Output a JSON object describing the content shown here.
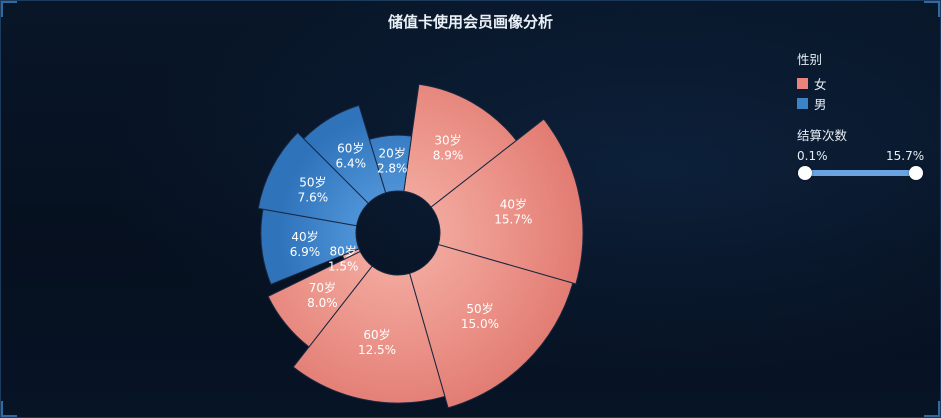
{
  "title": "储值卡使用会员画像分析",
  "legend": {
    "title": "性别",
    "items": [
      {
        "label": "女",
        "color": "#e8847b"
      },
      {
        "label": "男",
        "color": "#3b82c7"
      }
    ]
  },
  "range": {
    "title": "结算次数",
    "min_label": "0.1%",
    "max_label": "15.7%",
    "min": 0.1,
    "max": 15.7
  },
  "chart_data": {
    "type": "pie",
    "variant": "rose",
    "title": "储值卡使用会员画像分析",
    "series": [
      {
        "name": "女",
        "color": "#e8847b",
        "slices": [
          {
            "label": "30岁",
            "percent": "8.9%",
            "value": 8.9
          },
          {
            "label": "40岁",
            "percent": "15.7%",
            "value": 15.7
          },
          {
            "label": "50岁",
            "percent": "15.0%",
            "value": 15.0
          },
          {
            "label": "60岁",
            "percent": "12.5%",
            "value": 12.5
          },
          {
            "label": "70岁",
            "percent": "8.0%",
            "value": 8.0
          },
          {
            "label": "80岁",
            "percent": "1.5%",
            "value": 1.5
          }
        ]
      },
      {
        "name": "男",
        "color": "#3b82c7",
        "slices": [
          {
            "label": "40岁",
            "percent": "6.9%",
            "value": 6.9
          },
          {
            "label": "50岁",
            "percent": "7.6%",
            "value": 7.6
          },
          {
            "label": "60岁",
            "percent": "6.4%",
            "value": 6.4
          },
          {
            "label": "20岁",
            "percent": "2.8%",
            "value": 2.8
          }
        ]
      }
    ]
  }
}
